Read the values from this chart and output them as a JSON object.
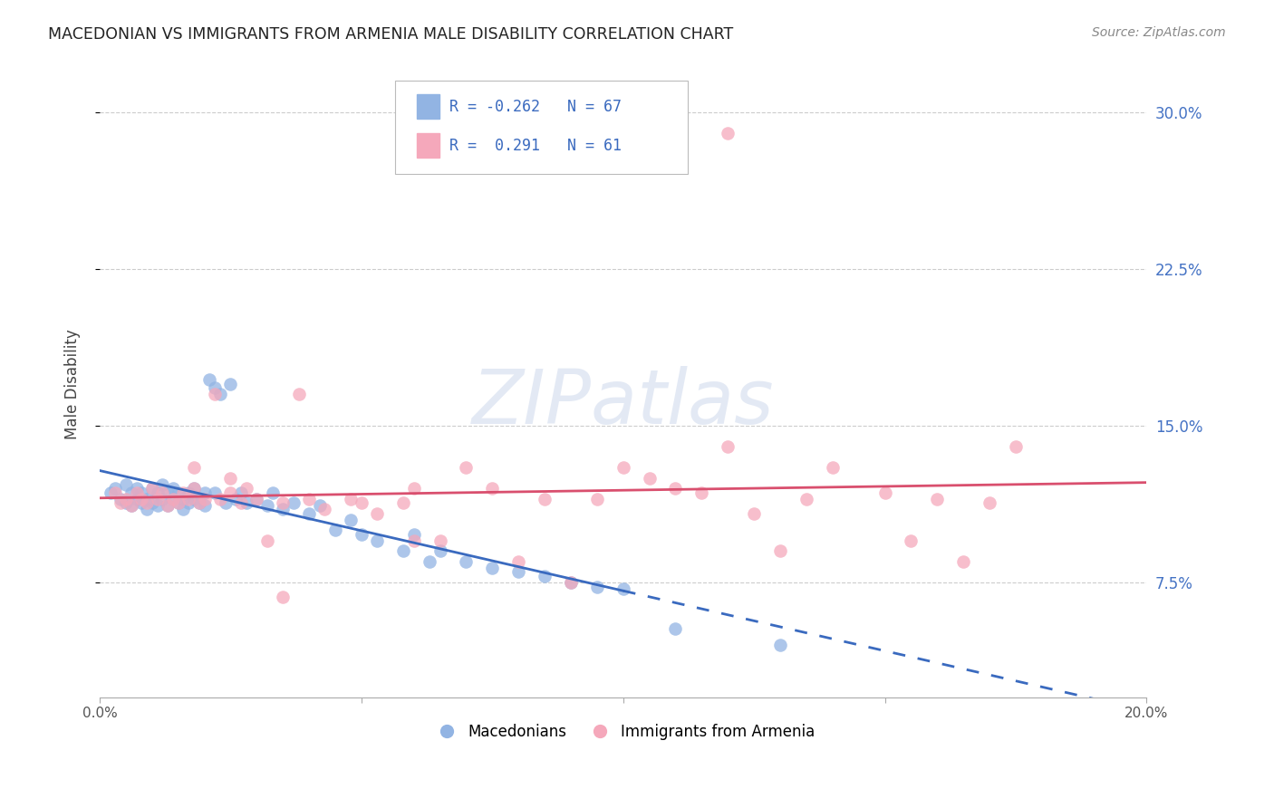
{
  "title": "MACEDONIAN VS IMMIGRANTS FROM ARMENIA MALE DISABILITY CORRELATION CHART",
  "source": "Source: ZipAtlas.com",
  "ylabel": "Male Disability",
  "ytick_labels": [
    "7.5%",
    "15.0%",
    "22.5%",
    "30.0%"
  ],
  "ytick_values": [
    0.075,
    0.15,
    0.225,
    0.3
  ],
  "xlim": [
    0.0,
    0.2
  ],
  "ylim": [
    0.02,
    0.32
  ],
  "legend_blue_r": "-0.262",
  "legend_blue_n": "67",
  "legend_pink_r": "0.291",
  "legend_pink_n": "61",
  "blue_color": "#92b4e3",
  "pink_color": "#f5a8bb",
  "blue_line_color": "#3a6abf",
  "pink_line_color": "#d94f6e",
  "blue_line_solid_end": 0.1,
  "blue_scatter_x": [
    0.002,
    0.003,
    0.004,
    0.005,
    0.005,
    0.006,
    0.006,
    0.007,
    0.007,
    0.008,
    0.008,
    0.009,
    0.009,
    0.01,
    0.01,
    0.011,
    0.011,
    0.012,
    0.012,
    0.013,
    0.013,
    0.014,
    0.014,
    0.015,
    0.015,
    0.016,
    0.016,
    0.017,
    0.017,
    0.018,
    0.018,
    0.019,
    0.02,
    0.02,
    0.021,
    0.022,
    0.022,
    0.023,
    0.024,
    0.025,
    0.026,
    0.027,
    0.028,
    0.03,
    0.032,
    0.033,
    0.035,
    0.037,
    0.04,
    0.042,
    0.045,
    0.048,
    0.05,
    0.053,
    0.058,
    0.06,
    0.063,
    0.065,
    0.07,
    0.075,
    0.08,
    0.085,
    0.09,
    0.095,
    0.1,
    0.11,
    0.13
  ],
  "blue_scatter_y": [
    0.118,
    0.12,
    0.115,
    0.113,
    0.122,
    0.118,
    0.112,
    0.115,
    0.12,
    0.113,
    0.118,
    0.115,
    0.11,
    0.12,
    0.113,
    0.118,
    0.112,
    0.115,
    0.122,
    0.118,
    0.112,
    0.115,
    0.12,
    0.118,
    0.113,
    0.115,
    0.11,
    0.118,
    0.113,
    0.12,
    0.115,
    0.113,
    0.118,
    0.112,
    0.172,
    0.168,
    0.118,
    0.165,
    0.113,
    0.17,
    0.115,
    0.118,
    0.113,
    0.115,
    0.112,
    0.118,
    0.11,
    0.113,
    0.108,
    0.112,
    0.1,
    0.105,
    0.098,
    0.095,
    0.09,
    0.098,
    0.085,
    0.09,
    0.085,
    0.082,
    0.08,
    0.078,
    0.075,
    0.073,
    0.072,
    0.053,
    0.045
  ],
  "pink_scatter_x": [
    0.003,
    0.004,
    0.005,
    0.006,
    0.007,
    0.008,
    0.009,
    0.01,
    0.011,
    0.012,
    0.013,
    0.014,
    0.015,
    0.016,
    0.017,
    0.018,
    0.019,
    0.02,
    0.022,
    0.023,
    0.025,
    0.027,
    0.028,
    0.03,
    0.032,
    0.035,
    0.038,
    0.04,
    0.043,
    0.048,
    0.05,
    0.053,
    0.058,
    0.06,
    0.065,
    0.07,
    0.075,
    0.08,
    0.085,
    0.09,
    0.095,
    0.1,
    0.105,
    0.11,
    0.115,
    0.12,
    0.125,
    0.13,
    0.135,
    0.14,
    0.15,
    0.155,
    0.16,
    0.165,
    0.17,
    0.175,
    0.018,
    0.025,
    0.035,
    0.06,
    0.12
  ],
  "pink_scatter_y": [
    0.118,
    0.113,
    0.115,
    0.112,
    0.118,
    0.115,
    0.113,
    0.12,
    0.115,
    0.118,
    0.112,
    0.115,
    0.113,
    0.118,
    0.115,
    0.12,
    0.113,
    0.115,
    0.165,
    0.115,
    0.118,
    0.113,
    0.12,
    0.115,
    0.095,
    0.113,
    0.165,
    0.115,
    0.11,
    0.115,
    0.113,
    0.108,
    0.113,
    0.12,
    0.095,
    0.13,
    0.12,
    0.085,
    0.115,
    0.075,
    0.115,
    0.13,
    0.125,
    0.12,
    0.118,
    0.14,
    0.108,
    0.09,
    0.115,
    0.13,
    0.118,
    0.095,
    0.115,
    0.085,
    0.113,
    0.14,
    0.13,
    0.125,
    0.068,
    0.095,
    0.29
  ]
}
